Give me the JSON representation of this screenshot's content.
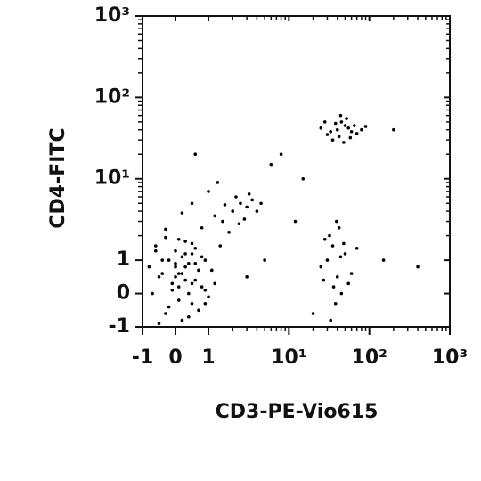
{
  "chart_data": {
    "type": "scatter",
    "x_label": "CD3-PE-Vio615",
    "y_label": "CD4-FITC",
    "scale": "biexponential",
    "color": "#000000",
    "xlim": [
      -1,
      1000
    ],
    "ylim": [
      -1,
      1000
    ],
    "xticks": [
      -1,
      0,
      1,
      {
        "value": 10,
        "label": "10¹"
      },
      {
        "value": 100,
        "label": "10²"
      },
      {
        "value": 1000,
        "label": "10³"
      }
    ],
    "yticks": [
      -1,
      0,
      1,
      {
        "value": 10,
        "label": "10¹"
      },
      {
        "value": 100,
        "label": "10²"
      },
      {
        "value": 1000,
        "label": "10³"
      }
    ],
    "xminorticks": [
      2,
      3,
      4,
      5,
      6,
      7,
      8,
      9,
      20,
      30,
      40,
      50,
      60,
      70,
      80,
      90,
      200,
      300,
      400,
      500,
      600,
      700,
      800,
      900
    ],
    "yminorticks": [
      2,
      3,
      4,
      5,
      6,
      7,
      8,
      9,
      20,
      30,
      40,
      50,
      60,
      70,
      80,
      90,
      200,
      300,
      400,
      500,
      600,
      700,
      800,
      900
    ],
    "x": [
      -0.5,
      -0.2,
      0.1,
      0.3,
      0.5,
      -0.7,
      0.0,
      0.2,
      0.6,
      0.8,
      -0.3,
      0.4,
      0.9,
      1.1,
      -0.6,
      0.1,
      0.3,
      -0.1,
      0.7,
      0.5,
      -0.4,
      0.2,
      0.0,
      0.6,
      1.2,
      -0.8,
      0.4,
      0.1,
      -0.2,
      0.9,
      0.3,
      0.7,
      -0.5,
      0.0,
      0.5,
      1.0,
      -0.3,
      0.2,
      0.8,
      0.4,
      -0.6,
      0.1,
      0.6,
      1.4,
      -0.1,
      0.3,
      0.9,
      0.0,
      0.5,
      -0.4,
      0.8,
      1.5,
      2,
      2.5,
      3,
      1.2,
      1.8,
      2.2,
      3.5,
      4,
      0.5,
      1,
      2.8,
      1.6,
      2.4,
      0.2,
      -0.3,
      3.2,
      1.3,
      4.5,
      30,
      40,
      50,
      60,
      45,
      35,
      55,
      70,
      42,
      38,
      25,
      48,
      65,
      52,
      80,
      33,
      44,
      58,
      28,
      90,
      30,
      40,
      35,
      45,
      25,
      50,
      38,
      32,
      42,
      60,
      20,
      28,
      36,
      48,
      33,
      55,
      44,
      27,
      39,
      70,
      5,
      8,
      12,
      3,
      150,
      400,
      0.6,
      15,
      200,
      6
    ],
    "values": [
      0.5,
      1.0,
      0.2,
      0.8,
      -0.3,
      0.0,
      1.3,
      0.6,
      0.4,
      1.1,
      -0.6,
      0.9,
      0.1,
      0.7,
      1.5,
      -0.2,
      1.2,
      0.3,
      -0.5,
      1.6,
      0.6,
      -0.8,
      0.9,
      1.4,
      0.3,
      0.8,
      0.0,
      1.8,
      -0.4,
      1.0,
      0.4,
      0.7,
      -0.9,
      0.5,
      1.2,
      -0.1,
      1.9,
      1.1,
      0.2,
      -0.7,
      1.3,
      0.6,
      0.9,
      1.5,
      0.1,
      1.7,
      -0.3,
      0.8,
      0.3,
      1.0,
      2.5,
      3,
      4,
      5,
      4.5,
      3.5,
      2.2,
      6,
      5.5,
      4,
      5,
      7,
      3.2,
      4.8,
      2.8,
      3.8,
      2.4,
      6.5,
      9,
      5,
      35,
      40,
      45,
      38,
      50,
      30,
      42,
      36,
      33,
      48,
      42,
      28,
      45,
      55,
      40,
      38,
      60,
      32,
      50,
      44,
      1,
      0.5,
      1.5,
      0,
      0.8,
      1.2,
      -0.3,
      2,
      2.5,
      0.6,
      -0.6,
      1.8,
      0.2,
      1.6,
      -0.8,
      0.3,
      1.1,
      0.4,
      3,
      1.4,
      1,
      20,
      3,
      0.5,
      1,
      0.8,
      20,
      10,
      40,
      15
    ]
  }
}
